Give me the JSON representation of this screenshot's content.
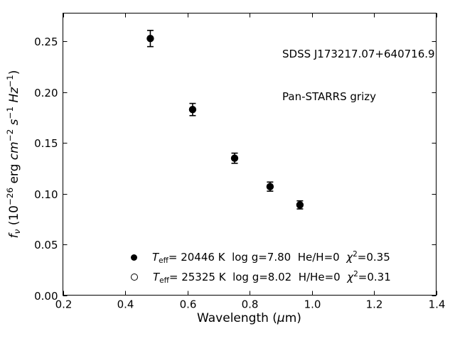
{
  "figure": {
    "background_color": "#ffffff",
    "foreground_color": "#000000"
  },
  "chart_data": {
    "type": "scatter",
    "title": "",
    "annotation_lines": [
      "SDSS J173217.07+640716.9",
      "Pan-STARRS grizy"
    ],
    "xlabel": "Wavelength (μm)",
    "xlabel_rich": "Wavelength (*μ*m)",
    "ylabel": "f_ν (10^−26 erg cm^−2 s^−1 Hz^−1)",
    "ylabel_rich": "*f*_{*ν*} (10^{−26} erg *cm*^{−2} *s*^{−1} *Hz*^{−1})",
    "xlim": [
      0.2,
      1.4
    ],
    "ylim": [
      0.0,
      0.278
    ],
    "grid": false,
    "tick_direction": "in",
    "ticks_all_sides": true,
    "legend_position": "lower-center-inside",
    "legend_frame": false,
    "xticks": {
      "values": [
        0.2,
        0.4,
        0.6,
        0.8,
        1.0,
        1.2,
        1.4
      ],
      "labels": [
        "0.2",
        "0.4",
        "0.6",
        "0.8",
        "1.0",
        "1.2",
        "1.4"
      ]
    },
    "yticks": {
      "values": [
        0.0,
        0.05,
        0.1,
        0.15,
        0.2,
        0.25
      ],
      "labels": [
        "0.00",
        "0.05",
        "0.10",
        "0.15",
        "0.20",
        "0.25"
      ]
    },
    "series": [
      {
        "name": "model-teff-20446",
        "marker": "filled-circle",
        "color": "#000000",
        "legend_label_rich": "*T*_{eff}= 20446 K  log g=7.80  He/H=0  *χ*^{2}=0.35",
        "legend_label": "Teff= 20446 K  log g=7.80  He/H=0  χ2=0.35",
        "x": [
          0.481,
          0.617,
          0.752,
          0.866,
          0.962
        ],
        "y": [
          0.253,
          0.183,
          0.135,
          0.107,
          0.089
        ],
        "yerr": [
          0.008,
          0.006,
          0.005,
          0.0045,
          0.004
        ]
      },
      {
        "name": "model-teff-25325",
        "marker": "open-circle",
        "color": "#000000",
        "legend_label_rich": "*T*_{eff}= 25325 K  log g=8.02  H/He=0  *χ*^{2}=0.31",
        "legend_label": "Teff= 25325 K  log g=8.02  H/He=0  χ2=0.31",
        "x": [],
        "y": [],
        "yerr": []
      }
    ]
  }
}
